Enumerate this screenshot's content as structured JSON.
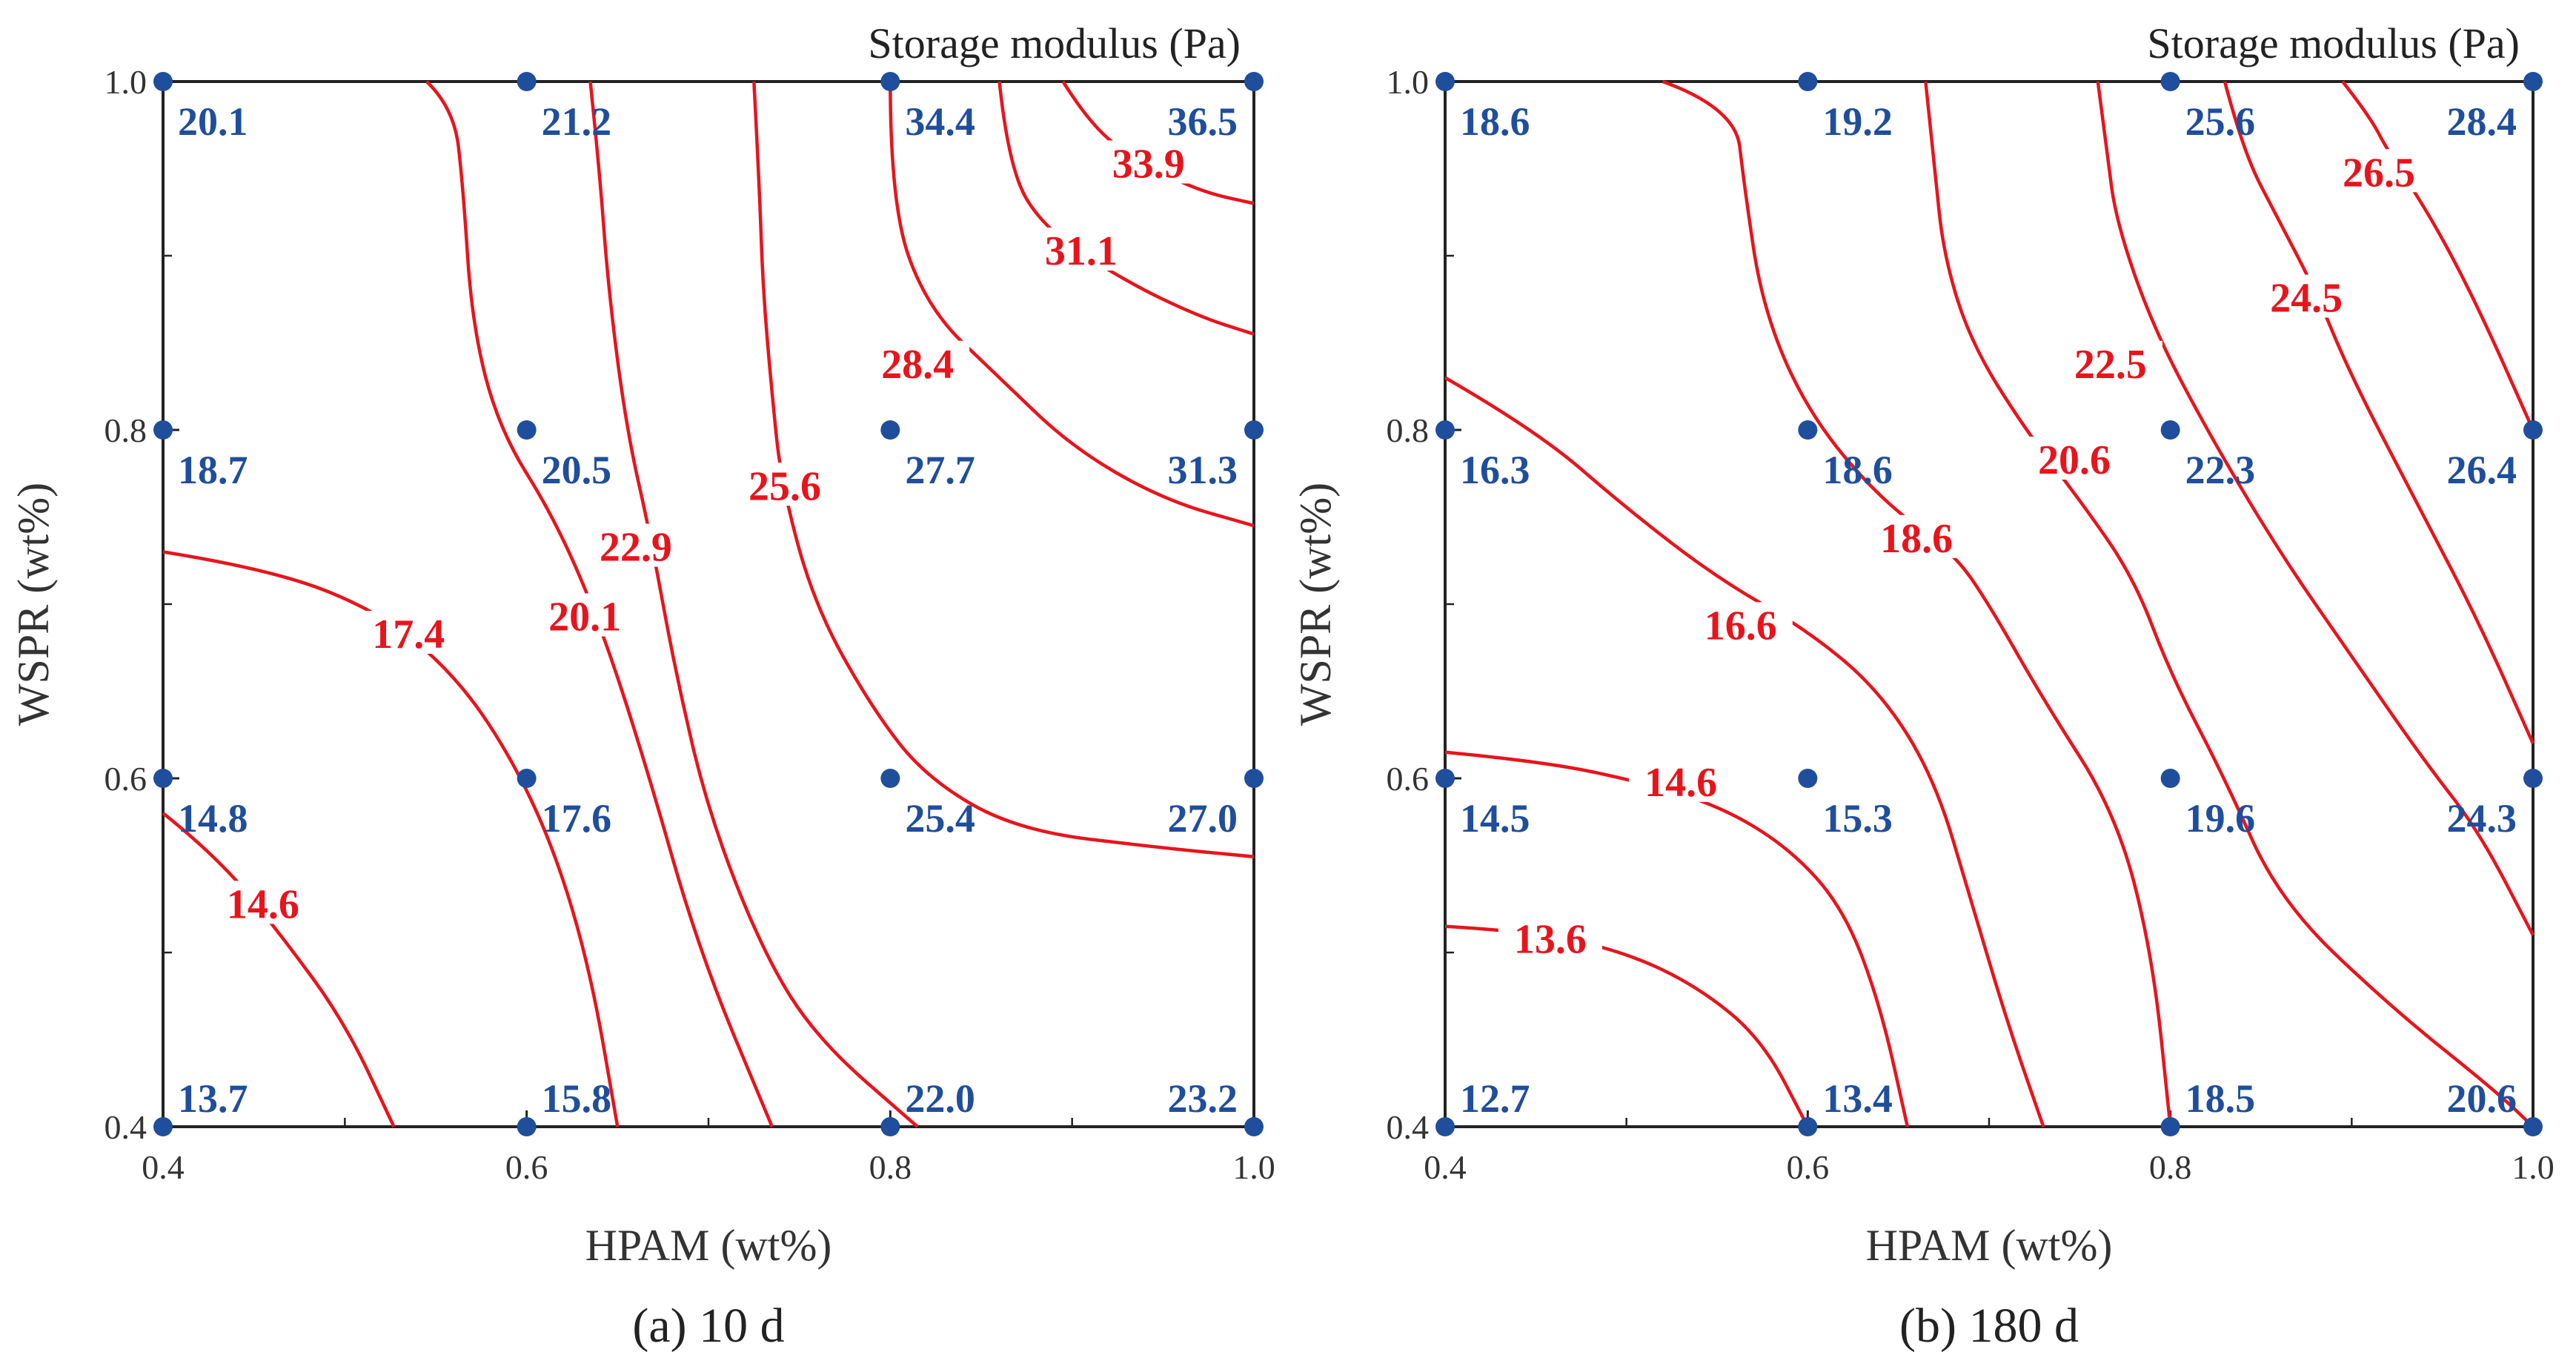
{
  "colors": {
    "points": "#1f4e9c",
    "contours": "#e8141c",
    "axis": "#222222",
    "text": "#333333"
  },
  "chart_data": [
    {
      "type": "contour",
      "title": "Storage modulus (Pa)",
      "caption": "(a) 10 d",
      "xlabel": "HPAM (wt%)",
      "ylabel": "WSPR (wt%)",
      "xlim": [
        0.4,
        1.0
      ],
      "ylim": [
        0.4,
        1.0
      ],
      "x_ticks": [
        "0.4",
        "0.6",
        "0.8",
        "1.0"
      ],
      "y_ticks": [
        "0.4",
        "0.6",
        "0.8",
        "1.0"
      ],
      "points": [
        {
          "x": 0.4,
          "y": 1.0,
          "label": "20.1"
        },
        {
          "x": 0.6,
          "y": 1.0,
          "label": "21.2"
        },
        {
          "x": 0.8,
          "y": 1.0,
          "label": "34.4"
        },
        {
          "x": 1.0,
          "y": 1.0,
          "label": "36.5"
        },
        {
          "x": 0.4,
          "y": 0.8,
          "label": "18.7"
        },
        {
          "x": 0.6,
          "y": 0.8,
          "label": "20.5"
        },
        {
          "x": 0.8,
          "y": 0.8,
          "label": "27.7"
        },
        {
          "x": 1.0,
          "y": 0.8,
          "label": "31.3"
        },
        {
          "x": 0.4,
          "y": 0.6,
          "label": "14.8"
        },
        {
          "x": 0.6,
          "y": 0.6,
          "label": "17.6"
        },
        {
          "x": 0.8,
          "y": 0.6,
          "label": "25.4"
        },
        {
          "x": 1.0,
          "y": 0.6,
          "label": "27.0"
        },
        {
          "x": 0.4,
          "y": 0.4,
          "label": "13.7"
        },
        {
          "x": 0.6,
          "y": 0.4,
          "label": "15.8"
        },
        {
          "x": 0.8,
          "y": 0.4,
          "label": "22.0"
        },
        {
          "x": 1.0,
          "y": 0.4,
          "label": "23.2"
        }
      ],
      "contours": [
        {
          "level": "14.6",
          "path": [
            [
              0.4,
              0.58
            ],
            [
              0.43,
              0.555
            ],
            [
              0.465,
              0.51
            ],
            [
              0.5,
              0.46
            ],
            [
              0.527,
              0.4
            ]
          ],
          "label_at": [
            0.455,
            0.525
          ]
        },
        {
          "level": "17.4",
          "path": [
            [
              0.4,
              0.73
            ],
            [
              0.46,
              0.72
            ],
            [
              0.52,
              0.695
            ],
            [
              0.56,
              0.66
            ],
            [
              0.59,
              0.615
            ],
            [
              0.615,
              0.56
            ],
            [
              0.635,
              0.49
            ],
            [
              0.65,
              0.4
            ]
          ],
          "label_at": [
            0.535,
            0.68
          ]
        },
        {
          "level": "20.1",
          "path": [
            [
              0.545,
              1.0
            ],
            [
              0.56,
              0.985
            ],
            [
              0.565,
              0.94
            ],
            [
              0.57,
              0.86
            ],
            [
              0.585,
              0.8
            ],
            [
              0.615,
              0.75
            ],
            [
              0.64,
              0.69
            ],
            [
              0.665,
              0.61
            ],
            [
              0.695,
              0.5
            ],
            [
              0.735,
              0.4
            ]
          ],
          "label_at": [
            0.632,
            0.69
          ]
        },
        {
          "level": "22.9",
          "path": [
            [
              0.635,
              1.0
            ],
            [
              0.64,
              0.95
            ],
            [
              0.645,
              0.88
            ],
            [
              0.655,
              0.8
            ],
            [
              0.668,
              0.74
            ],
            [
              0.682,
              0.66
            ],
            [
              0.7,
              0.58
            ],
            [
              0.73,
              0.5
            ],
            [
              0.76,
              0.45
            ],
            [
              0.815,
              0.4
            ]
          ],
          "label_at": [
            0.66,
            0.73
          ]
        },
        {
          "level": "25.6",
          "path": [
            [
              0.725,
              1.0
            ],
            [
              0.728,
              0.94
            ],
            [
              0.73,
              0.88
            ],
            [
              0.735,
              0.82
            ],
            [
              0.74,
              0.77
            ],
            [
              0.758,
              0.7
            ],
            [
              0.79,
              0.64
            ],
            [
              0.82,
              0.6
            ],
            [
              0.87,
              0.57
            ],
            [
              0.95,
              0.56
            ],
            [
              1.0,
              0.555
            ]
          ],
          "label_at": [
            0.742,
            0.765
          ]
        },
        {
          "level": "28.4",
          "path": [
            [
              0.8,
              1.0
            ],
            [
              0.8,
              0.93
            ],
            [
              0.82,
              0.87
            ],
            [
              0.86,
              0.83
            ],
            [
              0.9,
              0.79
            ],
            [
              0.95,
              0.76
            ],
            [
              1.0,
              0.745
            ]
          ],
          "label_at": [
            0.815,
            0.835
          ]
        },
        {
          "level": "31.1",
          "path": [
            [
              0.86,
              1.0
            ],
            [
              0.865,
              0.95
            ],
            [
              0.885,
              0.915
            ],
            [
              0.93,
              0.885
            ],
            [
              0.97,
              0.865
            ],
            [
              1.0,
              0.855
            ]
          ],
          "label_at": [
            0.905,
            0.9
          ]
        },
        {
          "level": "33.9",
          "path": [
            [
              0.895,
              1.0
            ],
            [
              0.91,
              0.975
            ],
            [
              0.935,
              0.955
            ],
            [
              0.97,
              0.937
            ],
            [
              1.0,
              0.93
            ]
          ],
          "label_at": [
            0.942,
            0.95
          ]
        }
      ]
    },
    {
      "type": "contour",
      "title": "Storage modulus (Pa)",
      "caption": "(b) 180 d",
      "xlabel": "HPAM (wt%)",
      "ylabel": "WSPR (wt%)",
      "xlim": [
        0.4,
        1.0
      ],
      "ylim": [
        0.4,
        1.0
      ],
      "x_ticks": [
        "0.4",
        "0.6",
        "0.8",
        "1.0"
      ],
      "y_ticks": [
        "0.4",
        "0.6",
        "0.8",
        "1.0"
      ],
      "points": [
        {
          "x": 0.4,
          "y": 1.0,
          "label": "18.6"
        },
        {
          "x": 0.6,
          "y": 1.0,
          "label": "19.2"
        },
        {
          "x": 0.8,
          "y": 1.0,
          "label": "25.6"
        },
        {
          "x": 1.0,
          "y": 1.0,
          "label": "28.4"
        },
        {
          "x": 0.4,
          "y": 0.8,
          "label": "16.3"
        },
        {
          "x": 0.6,
          "y": 0.8,
          "label": "18.6"
        },
        {
          "x": 0.8,
          "y": 0.8,
          "label": "22.3"
        },
        {
          "x": 1.0,
          "y": 0.8,
          "label": "26.4"
        },
        {
          "x": 0.4,
          "y": 0.6,
          "label": "14.5"
        },
        {
          "x": 0.6,
          "y": 0.6,
          "label": "15.3"
        },
        {
          "x": 0.8,
          "y": 0.6,
          "label": "19.6"
        },
        {
          "x": 1.0,
          "y": 0.6,
          "label": "24.3"
        },
        {
          "x": 0.4,
          "y": 0.4,
          "label": "12.7"
        },
        {
          "x": 0.6,
          "y": 0.4,
          "label": "13.4"
        },
        {
          "x": 0.8,
          "y": 0.4,
          "label": "18.5"
        },
        {
          "x": 1.0,
          "y": 0.4,
          "label": "20.6"
        }
      ],
      "contours": [
        {
          "level": "13.6",
          "path": [
            [
              0.4,
              0.515
            ],
            [
              0.45,
              0.512
            ],
            [
              0.5,
              0.5
            ],
            [
              0.54,
              0.48
            ],
            [
              0.575,
              0.45
            ],
            [
              0.6,
              0.4
            ]
          ],
          "label_at": [
            0.458,
            0.505
          ]
        },
        {
          "level": "14.6",
          "path": [
            [
              0.4,
              0.615
            ],
            [
              0.45,
              0.61
            ],
            [
              0.5,
              0.6
            ],
            [
              0.55,
              0.585
            ],
            [
              0.59,
              0.56
            ],
            [
              0.62,
              0.525
            ],
            [
              0.64,
              0.47
            ],
            [
              0.655,
              0.4
            ]
          ],
          "label_at": [
            0.53,
            0.595
          ]
        },
        {
          "level": "16.6",
          "path": [
            [
              0.4,
              0.83
            ],
            [
              0.45,
              0.8
            ],
            [
              0.5,
              0.755
            ],
            [
              0.55,
              0.715
            ],
            [
              0.6,
              0.685
            ],
            [
              0.64,
              0.65
            ],
            [
              0.67,
              0.6
            ],
            [
              0.69,
              0.53
            ],
            [
              0.71,
              0.46
            ],
            [
              0.73,
              0.4
            ]
          ],
          "label_at": [
            0.563,
            0.685
          ]
        },
        {
          "level": "18.6",
          "path": [
            [
              0.52,
              1.0
            ],
            [
              0.56,
              0.985
            ],
            [
              0.565,
              0.94
            ],
            [
              0.575,
              0.87
            ],
            [
              0.6,
              0.81
            ],
            [
              0.64,
              0.76
            ],
            [
              0.68,
              0.73
            ],
            [
              0.7,
              0.7
            ],
            [
              0.73,
              0.645
            ],
            [
              0.77,
              0.58
            ],
            [
              0.79,
              0.5
            ],
            [
              0.8,
              0.4
            ]
          ],
          "label_at": [
            0.66,
            0.735
          ]
        },
        {
          "level": "20.6",
          "path": [
            [
              0.665,
              1.0
            ],
            [
              0.67,
              0.95
            ],
            [
              0.675,
              0.9
            ],
            [
              0.69,
              0.85
            ],
            [
              0.72,
              0.8
            ],
            [
              0.75,
              0.76
            ],
            [
              0.78,
              0.715
            ],
            [
              0.8,
              0.66
            ],
            [
              0.83,
              0.6
            ],
            [
              0.86,
              0.53
            ],
            [
              0.92,
              0.47
            ],
            [
              0.98,
              0.42
            ],
            [
              1.0,
              0.4
            ]
          ],
          "label_at": [
            0.747,
            0.78
          ]
        },
        {
          "level": "22.5",
          "path": [
            [
              0.76,
              1.0
            ],
            [
              0.765,
              0.96
            ],
            [
              0.77,
              0.92
            ],
            [
              0.79,
              0.86
            ],
            [
              0.82,
              0.8
            ],
            [
              0.86,
              0.73
            ],
            [
              0.9,
              0.67
            ],
            [
              0.94,
              0.61
            ],
            [
              0.97,
              0.57
            ],
            [
              1.0,
              0.51
            ]
          ],
          "label_at": [
            0.767,
            0.835
          ]
        },
        {
          "level": "24.5",
          "path": [
            [
              0.83,
              1.0
            ],
            [
              0.84,
              0.96
            ],
            [
              0.86,
              0.92
            ],
            [
              0.88,
              0.88
            ],
            [
              0.9,
              0.83
            ],
            [
              0.94,
              0.75
            ],
            [
              0.97,
              0.69
            ],
            [
              1.0,
              0.62
            ]
          ],
          "label_at": [
            0.875,
            0.873
          ]
        },
        {
          "level": "26.5",
          "path": [
            [
              0.895,
              1.0
            ],
            [
              0.91,
              0.98
            ],
            [
              0.92,
              0.96
            ],
            [
              0.945,
              0.92
            ],
            [
              0.97,
              0.87
            ],
            [
              1.0,
              0.8
            ]
          ],
          "label_at": [
            0.915,
            0.945
          ]
        }
      ]
    }
  ]
}
